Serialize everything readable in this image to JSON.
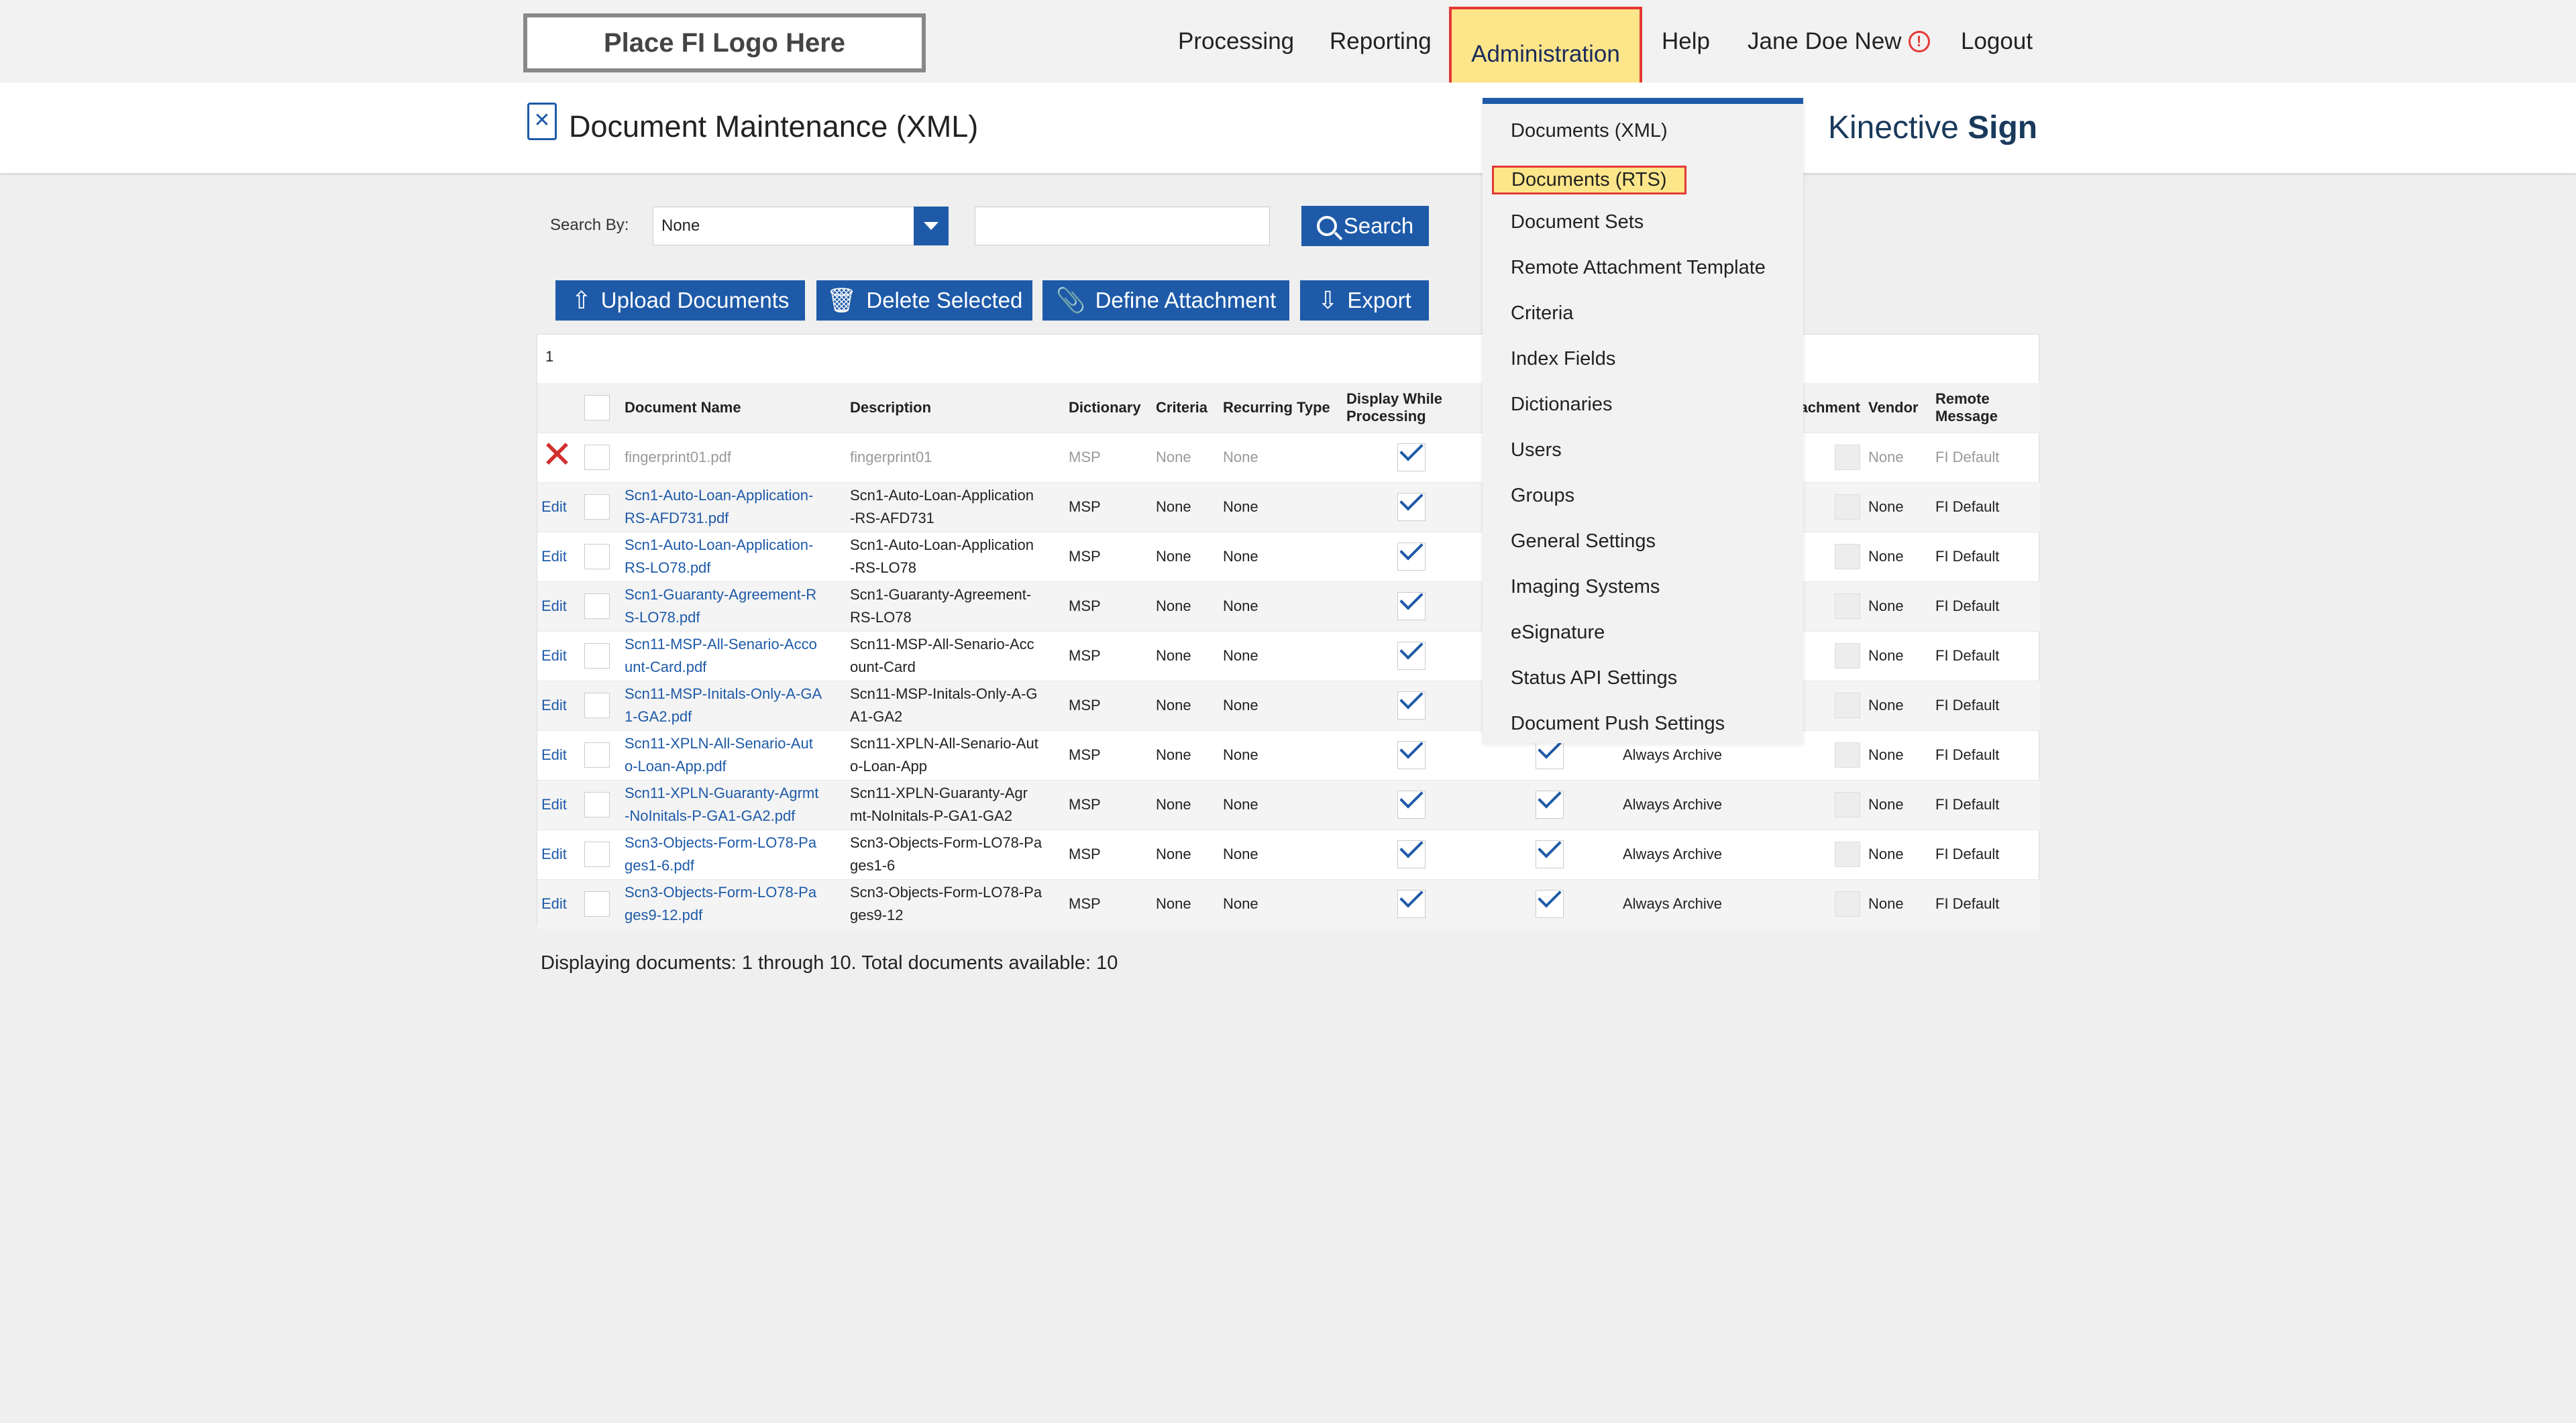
{
  "nav": {
    "logo": "Place FI Logo Here",
    "items": [
      "Processing",
      "Reporting",
      "Administration",
      "Help"
    ],
    "user": "Jane Doe New",
    "logout": "Logout"
  },
  "header": {
    "title": "Document Maintenance (XML)",
    "brand_prefix": "Kinective",
    "brand_suffix": "Sign"
  },
  "search": {
    "label": "Search By:",
    "selected": "None",
    "value": "",
    "button": "Search"
  },
  "actions": {
    "upload": "Upload Documents",
    "delete": "Delete Selected",
    "define": "Define Attachment",
    "export": "Export"
  },
  "pager": "1",
  "table": {
    "headers": {
      "name": "Document Name",
      "description": "Description",
      "dictionary": "Dictionary",
      "criteria": "Criteria",
      "recurring": "Recurring Type",
      "display1": "Display While",
      "display2": "Processing",
      "attachment": "achment",
      "vendor": "Vendor",
      "remote1": "Remote",
      "remote2": "Message"
    },
    "rows": [
      {
        "action": "",
        "name1": "fingerprint01.pdf",
        "name2": "",
        "desc1": "fingerprint01",
        "desc2": "",
        "dict": "MSP",
        "crit": "None",
        "rec": "None",
        "archive": "",
        "vendor": "None",
        "remote": "FI Default"
      },
      {
        "action": "Edit",
        "name1": "Scn1-Auto-Loan-Application-",
        "name2": "RS-AFD731.pdf",
        "desc1": "Scn1-Auto-Loan-Application",
        "desc2": "-RS-AFD731",
        "dict": "MSP",
        "crit": "None",
        "rec": "None",
        "archive": "",
        "vendor": "None",
        "remote": "FI Default"
      },
      {
        "action": "Edit",
        "name1": "Scn1-Auto-Loan-Application-",
        "name2": "RS-LO78.pdf",
        "desc1": "Scn1-Auto-Loan-Application",
        "desc2": "-RS-LO78",
        "dict": "MSP",
        "crit": "None",
        "rec": "None",
        "archive": "",
        "vendor": "None",
        "remote": "FI Default"
      },
      {
        "action": "Edit",
        "name1": "Scn1-Guaranty-Agreement-R",
        "name2": "S-LO78.pdf",
        "desc1": "Scn1-Guaranty-Agreement-",
        "desc2": "RS-LO78",
        "dict": "MSP",
        "crit": "None",
        "rec": "None",
        "archive": "",
        "vendor": "None",
        "remote": "FI Default"
      },
      {
        "action": "Edit",
        "name1": "Scn11-MSP-All-Senario-Acco",
        "name2": "unt-Card.pdf",
        "desc1": "Scn11-MSP-All-Senario-Acc",
        "desc2": "ount-Card",
        "dict": "MSP",
        "crit": "None",
        "rec": "None",
        "archive": "",
        "vendor": "None",
        "remote": "FI Default"
      },
      {
        "action": "Edit",
        "name1": "Scn11-MSP-Initals-Only-A-GA",
        "name2": "1-GA2.pdf",
        "desc1": "Scn11-MSP-Initals-Only-A-G",
        "desc2": "A1-GA2",
        "dict": "MSP",
        "crit": "None",
        "rec": "None",
        "archive": "",
        "vendor": "None",
        "remote": "FI Default"
      },
      {
        "action": "Edit",
        "name1": "Scn11-XPLN-All-Senario-Aut",
        "name2": "o-Loan-App.pdf",
        "desc1": "Scn11-XPLN-All-Senario-Aut",
        "desc2": "o-Loan-App",
        "dict": "MSP",
        "crit": "None",
        "rec": "None",
        "archive": "Always Archive",
        "vendor": "None",
        "remote": "FI Default"
      },
      {
        "action": "Edit",
        "name1": "Scn11-XPLN-Guaranty-Agrmt",
        "name2": "-NoInitals-P-GA1-GA2.pdf",
        "desc1": "Scn11-XPLN-Guaranty-Agr",
        "desc2": "mt-NoInitals-P-GA1-GA2",
        "dict": "MSP",
        "crit": "None",
        "rec": "None",
        "archive": "Always Archive",
        "vendor": "None",
        "remote": "FI Default"
      },
      {
        "action": "Edit",
        "name1": "Scn3-Objects-Form-LO78-Pa",
        "name2": "ges1-6.pdf",
        "desc1": "Scn3-Objects-Form-LO78-Pa",
        "desc2": "ges1-6",
        "dict": "MSP",
        "crit": "None",
        "rec": "None",
        "archive": "Always Archive",
        "vendor": "None",
        "remote": "FI Default"
      },
      {
        "action": "Edit",
        "name1": "Scn3-Objects-Form-LO78-Pa",
        "name2": "ges9-12.pdf",
        "desc1": "Scn3-Objects-Form-LO78-Pa",
        "desc2": "ges9-12",
        "dict": "MSP",
        "crit": "None",
        "rec": "None",
        "archive": "Always Archive",
        "vendor": "None",
        "remote": "FI Default"
      }
    ]
  },
  "footer": "Displaying documents: 1 through 10. Total documents available: 10",
  "menu": {
    "items": [
      "Documents (XML)",
      "Documents (RTS)",
      "Document Sets",
      "Remote Attachment Template",
      "Criteria",
      "Index Fields",
      "Dictionaries",
      "Users",
      "Groups",
      "General Settings",
      "Imaging Systems",
      "eSignature",
      "Status API Settings",
      "Document Push Settings"
    ]
  },
  "colors": {
    "accent": "#1e5aa8",
    "highlight": "#fde68a",
    "alert": "#e53935"
  },
  "icons": {
    "logo_placeholder": "logo-box",
    "user_alert": "alert-icon",
    "page": "document-icon",
    "search": "search-icon",
    "upload": "upload-icon",
    "delete": "trash-icon",
    "attach": "paperclip-icon",
    "export": "download-icon",
    "remove": "close-icon",
    "check": "check-icon"
  }
}
